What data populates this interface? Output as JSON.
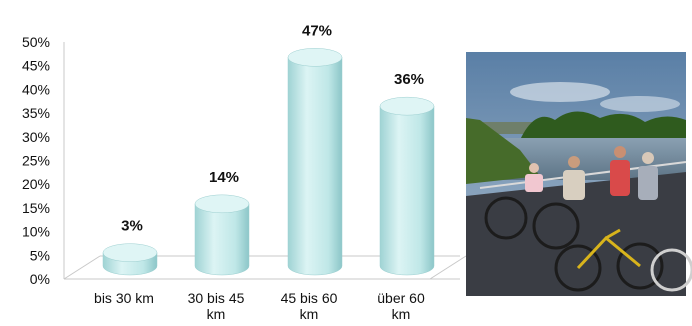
{
  "chart_data": {
    "type": "bar",
    "style": "3d-cylinder",
    "categories": [
      [
        "bis 30 km"
      ],
      [
        "30 bis 45",
        "km"
      ],
      [
        "45 bis 60",
        "km"
      ],
      [
        "über 60",
        "km"
      ]
    ],
    "values": [
      3,
      14,
      47,
      36
    ],
    "data_labels": [
      "3%",
      "14%",
      "47%",
      "36%"
    ],
    "ylim": [
      0,
      50
    ],
    "y_ticks": [
      "0%",
      "5%",
      "10%",
      "15%",
      "20%",
      "25%",
      "30%",
      "35%",
      "40%",
      "45%",
      "50%"
    ],
    "grid": false,
    "legend": "none",
    "colors": {
      "bar_body": "#bfe7e7",
      "bar_shade": "#8cc6c8",
      "bar_top": "#dff5f5",
      "axis": "#c8c8c8"
    }
  },
  "photo": {
    "subject": "cyclists-on-river-ferry",
    "sky_color": "#6f8fb0",
    "tree_color": "#2f5b1e",
    "deck_color": "#3a3d44"
  }
}
